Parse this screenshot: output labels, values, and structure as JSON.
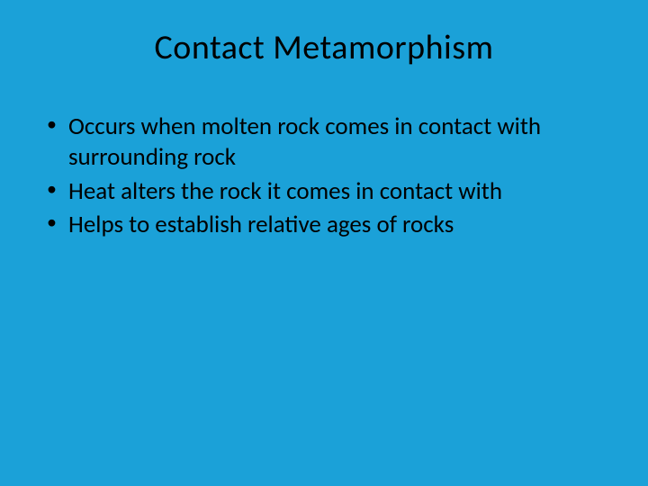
{
  "slide": {
    "title": "Contact Metamorphism",
    "bullets": [
      "Occurs when molten rock comes in contact with surrounding rock",
      "Heat alters the rock it comes in contact with",
      "Helps to establish relative ages of rocks"
    ],
    "background_color": "#1ba1d8",
    "text_color": "#000000",
    "title_fontsize": 38,
    "body_fontsize": 27,
    "font_family": "Calibri"
  }
}
